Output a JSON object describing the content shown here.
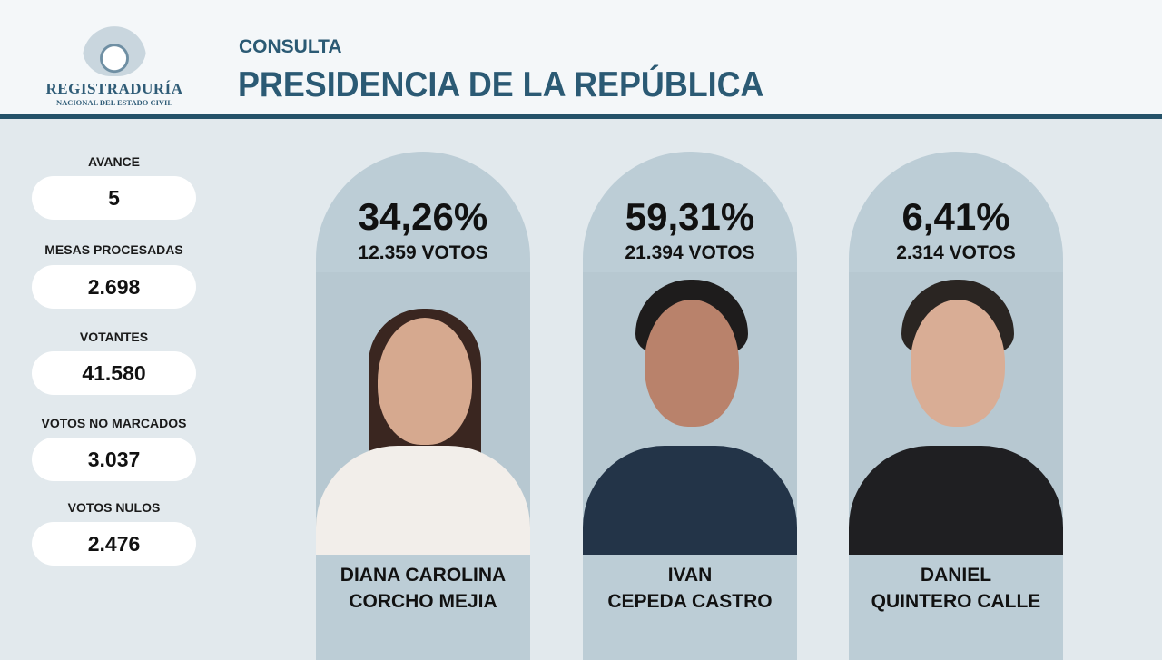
{
  "header": {
    "logo_text": "REGISTRADURÍA",
    "logo_subtext": "NACIONAL DEL ESTADO CIVIL",
    "subtitle": "CONSULTA",
    "title": "PRESIDENCIA DE LA REPÚBLICA"
  },
  "stats": [
    {
      "label": "AVANCE",
      "value": "5"
    },
    {
      "label": "MESAS PROCESADAS",
      "value": "2.698"
    },
    {
      "label": "VOTANTES",
      "value": "41.580"
    },
    {
      "label": "VOTOS NO MARCADOS",
      "value": "3.037"
    },
    {
      "label": "VOTOS NULOS",
      "value": "2.476"
    }
  ],
  "candidates": [
    {
      "percent": "34,26%",
      "votes": "12.359 VOTOS",
      "name_line1": "DIANA CAROLINA",
      "name_line2": "CORCHO MEJIA"
    },
    {
      "percent": "59,31%",
      "votes": "21.394 VOTOS",
      "name_line1": "IVAN",
      "name_line2": "CEPEDA CASTRO"
    },
    {
      "percent": "6,41%",
      "votes": "2.314 VOTOS",
      "name_line1": "DANIEL",
      "name_line2": "QUINTERO CALLE"
    }
  ],
  "colors": {
    "accent": "#2b5a74",
    "card": "#bccdd6",
    "background": "#e2e9ed"
  }
}
